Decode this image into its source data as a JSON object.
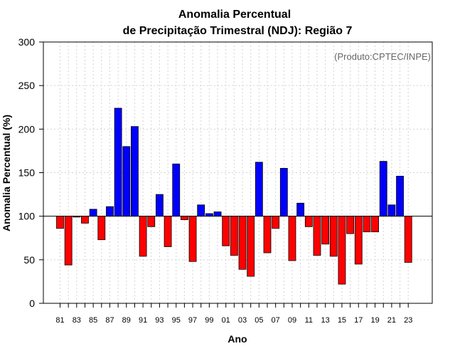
{
  "colors": {
    "above": "#0000ff",
    "below": "#ff0000",
    "grid": "#d3d3d3",
    "credit": "#666666"
  },
  "chart_data": {
    "type": "bar",
    "title_line1": "Anomalia Percentual",
    "title_line2": "de Precipitação Trimestral (NDJ): Região 7",
    "xlabel": "Ano",
    "ylabel": "Anomalia Percentual (%)",
    "credit": "(Produto:CPTEC/INPE)",
    "baseline": 100,
    "ylim": [
      0,
      300
    ],
    "yticks": [
      0,
      50,
      100,
      150,
      200,
      250,
      300
    ],
    "xtick_labels": [
      "81",
      "83",
      "85",
      "87",
      "89",
      "91",
      "93",
      "95",
      "97",
      "99",
      "01",
      "03",
      "05",
      "07",
      "09",
      "11",
      "13",
      "15",
      "17",
      "19",
      "21",
      "23"
    ],
    "categories": [
      "81",
      "82",
      "83",
      "84",
      "85",
      "86",
      "87",
      "88",
      "89",
      "90",
      "91",
      "92",
      "93",
      "94",
      "95",
      "96",
      "97",
      "98",
      "99",
      "00",
      "01",
      "02",
      "03",
      "04",
      "05",
      "06",
      "07",
      "08",
      "09",
      "10",
      "11",
      "12",
      "13",
      "14",
      "15",
      "16",
      "17",
      "18",
      "19",
      "20",
      "21",
      "22",
      "23"
    ],
    "values": [
      86,
      44,
      99,
      92,
      108,
      73,
      111,
      224,
      180,
      203,
      54,
      88,
      125,
      65,
      160,
      96,
      48,
      113,
      103,
      105,
      66,
      55,
      39,
      31,
      162,
      58,
      86,
      155,
      49,
      115,
      88,
      55,
      68,
      54,
      22,
      80,
      45,
      82,
      82,
      163,
      113,
      146,
      47
    ]
  }
}
